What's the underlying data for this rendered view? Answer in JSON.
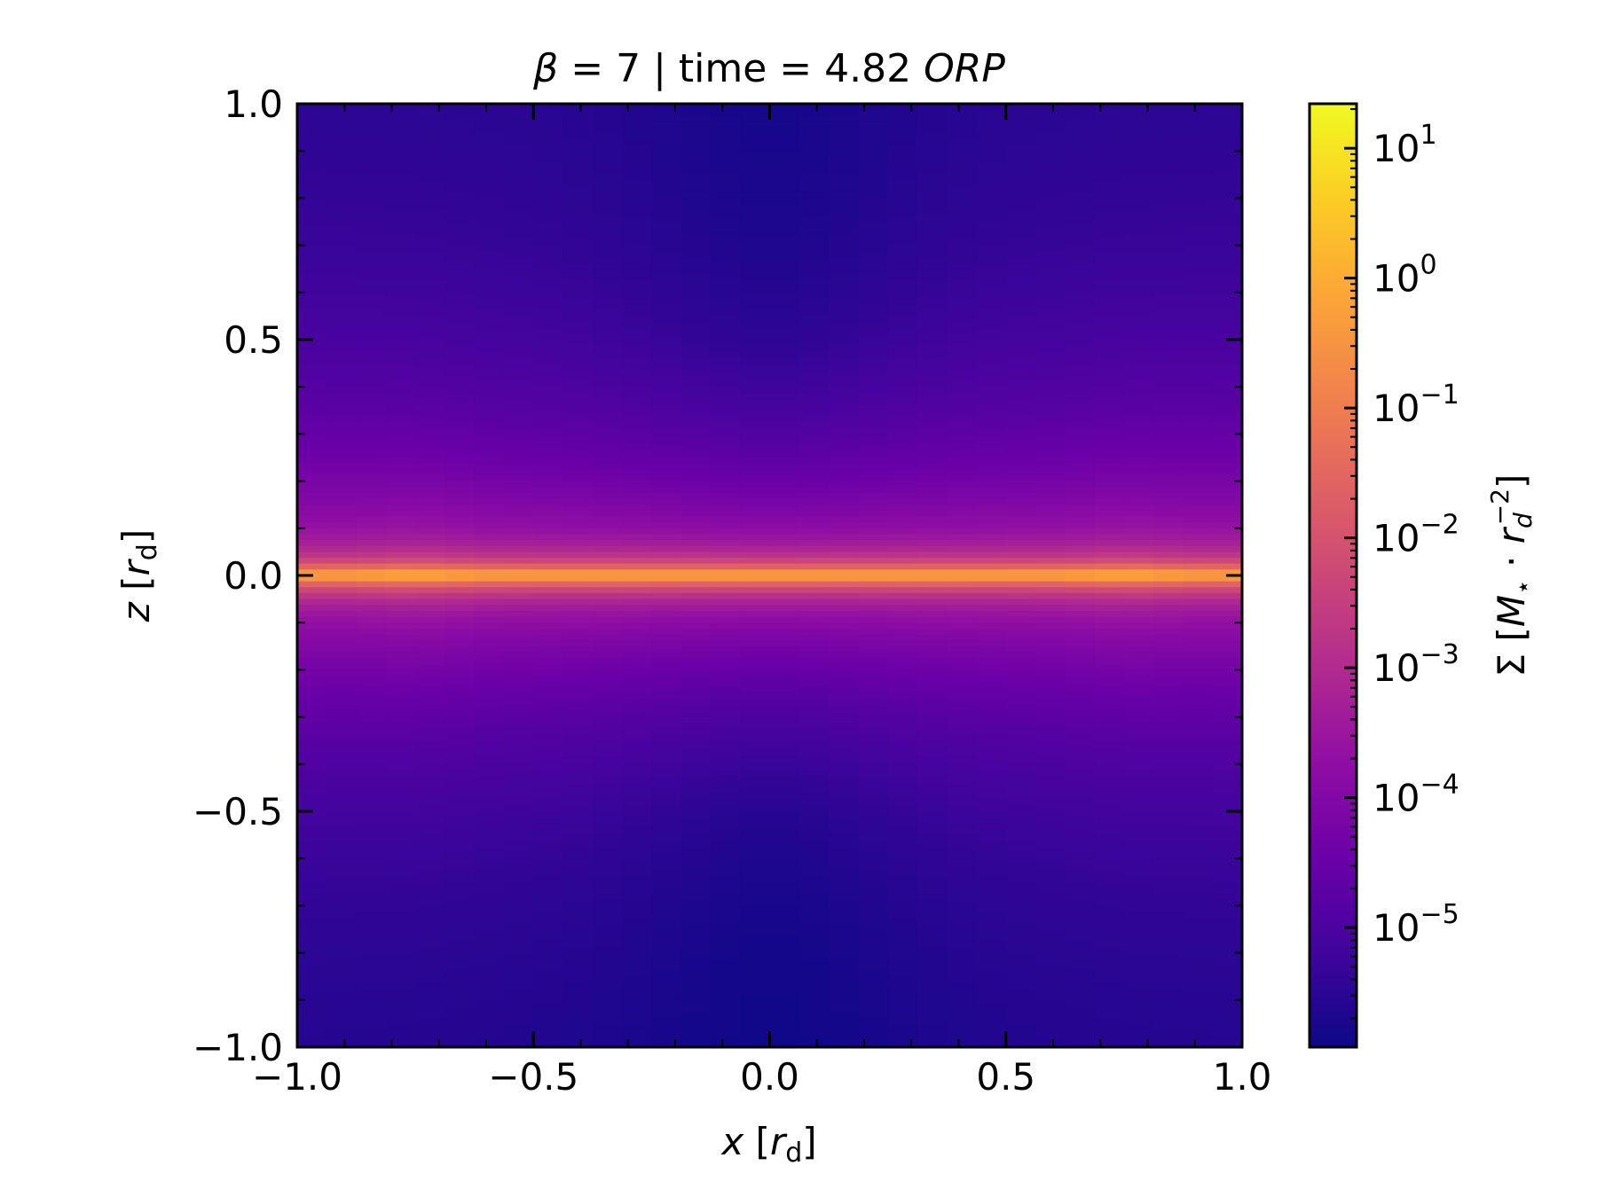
{
  "chart_data": {
    "type": "heatmap",
    "title": {
      "beta_symbol": "β",
      "beta_value": "7",
      "time_label": "time",
      "time_value": "4.82",
      "time_unit": "ORP"
    },
    "xlabel": {
      "var": "x",
      "unit": "r",
      "unit_sub": "d"
    },
    "ylabel": {
      "var": "z",
      "unit": "r",
      "unit_sub": "d"
    },
    "xlim": [
      -1.0,
      1.0
    ],
    "ylim": [
      -1.0,
      1.0
    ],
    "x_ticks": [
      -1.0,
      -0.5,
      0.0,
      0.5,
      1.0
    ],
    "x_tick_labels": [
      "−1.0",
      "−0.5",
      "0.0",
      "0.5",
      "1.0"
    ],
    "y_ticks": [
      -1.0,
      -0.5,
      0.0,
      0.5,
      1.0
    ],
    "y_tick_labels": [
      "−1.0",
      "−0.5",
      "0.0",
      "0.5",
      "1.0"
    ],
    "grid": false,
    "colormap": "plasma",
    "colorbar": {
      "scale": "log",
      "range": [
        1.2e-06,
        22
      ],
      "label": {
        "symbol": "Σ",
        "mass": "M",
        "mass_sub": "⋆",
        "length": "r",
        "length_sub": "d",
        "exponent": "−2"
      },
      "ticks": [
        {
          "exp": 1,
          "base": "10",
          "exp_label": "1"
        },
        {
          "exp": 0,
          "base": "10",
          "exp_label": "0"
        },
        {
          "exp": -1,
          "base": "10",
          "exp_label": "−1"
        },
        {
          "exp": -2,
          "base": "10",
          "exp_label": "−2"
        },
        {
          "exp": -3,
          "base": "10",
          "exp_label": "−3"
        },
        {
          "exp": -4,
          "base": "10",
          "exp_label": "−4"
        },
        {
          "exp": -5,
          "base": "10",
          "exp_label": "−5"
        }
      ]
    },
    "field_description": {
      "midplane_peak_log10": 0.3,
      "top_background_log10": -5.6,
      "bottom_background_log10": -5.7
    }
  }
}
